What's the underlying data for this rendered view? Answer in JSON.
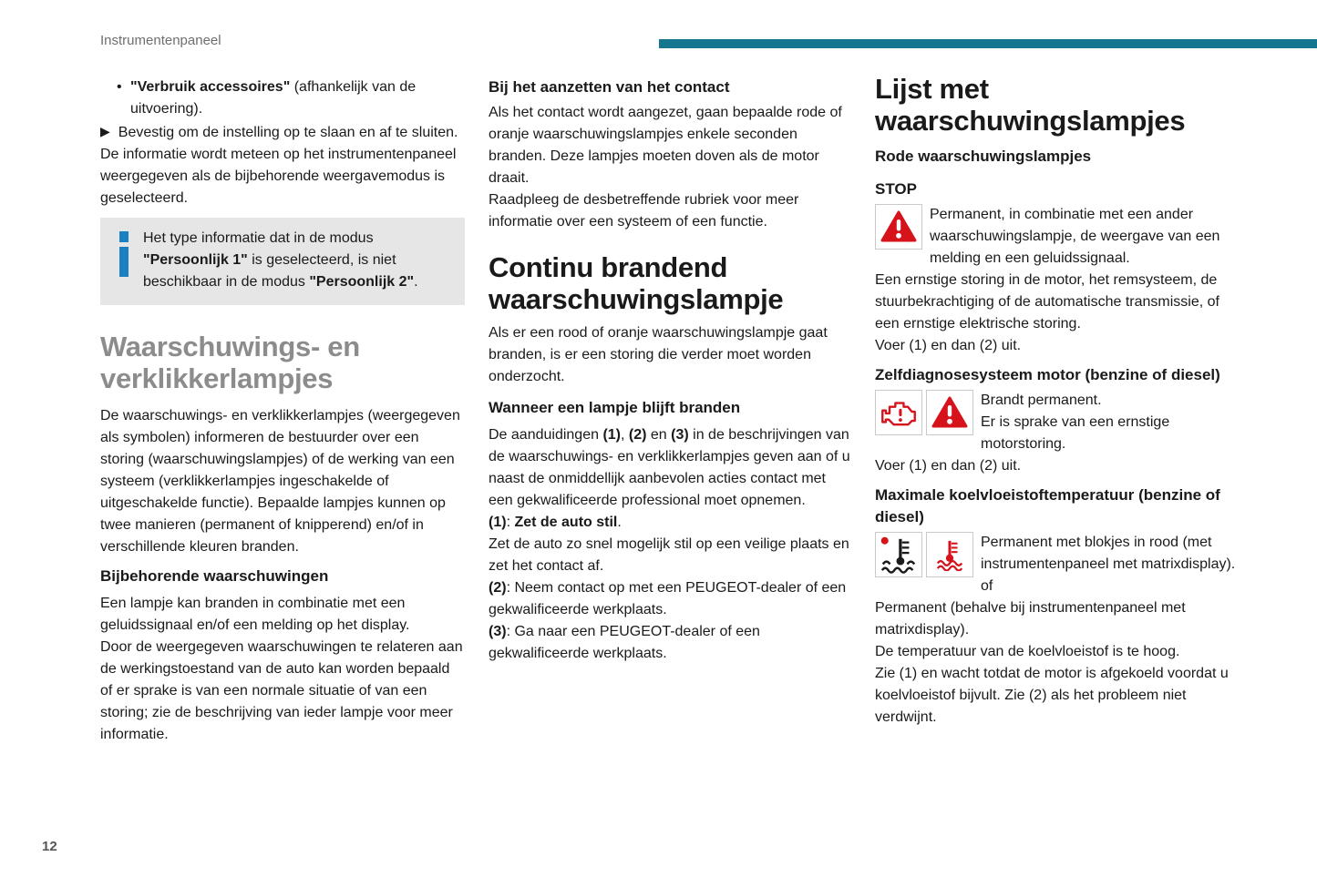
{
  "page": {
    "header": "Instrumentenpaneel",
    "page_number": "12",
    "accent_color": "#17768f",
    "warning_red": "#d6121b",
    "info_blue": "#1b7fc4",
    "infobox_bg": "#e6e6e6",
    "heading_gray": "#8c8c8c"
  },
  "col1": {
    "bullet_glyph": "•",
    "arrow_glyph": "▶",
    "bullet_item_rich": [
      {
        "t": "\"Verbruik accessoires\"",
        "b": true
      },
      {
        "t": " (afhankelijk van de uitvoering).",
        "b": false
      }
    ],
    "action_item": "Bevestig om de instelling op te slaan en af te sluiten.",
    "para_display": "De informatie wordt meteen op het instrumentenpaneel weergegeven als de bijbehorende weergavemodus is geselecteerd.",
    "infobox_rich": [
      {
        "t": "Het type informatie dat in de modus ",
        "b": false
      },
      {
        "t": "\"Persoonlijk 1\"",
        "b": true
      },
      {
        "t": " is geselecteerd, is niet beschikbaar in de modus ",
        "b": false
      },
      {
        "t": "\"Persoonlijk 2\"",
        "b": true
      },
      {
        "t": ".",
        "b": false
      }
    ],
    "heading": "Waarschuwings- en verklikkerlampjes",
    "intro": "De waarschuwings- en verklikkerlampjes (weergegeven als symbolen) informeren de bestuurder over een storing (waarschuwingslampjes) of de werking van een systeem (verklikkerlampjes ingeschakelde of uitgeschakelde functie). Bepaalde lampjes kunnen op twee manieren (permanent of knipperend) en/of in verschillende kleuren branden.",
    "sub1": "Bijbehorende waarschuwingen",
    "para_warnings": "Een lampje kan branden in combinatie met een geluidssignaal en/of een melding op het display.\nDoor de weergegeven waarschuwingen te relateren aan de werkingstoestand van de auto kan worden bepaald of er sprake is van een normale situatie of van een storing; zie de beschrijving van ieder lampje voor meer informatie."
  },
  "col2": {
    "sub1": "Bij het aanzetten van het contact",
    "para1": "Als het contact wordt aangezet, gaan bepaalde rode of oranje waarschuwingslampjes enkele seconden branden. Deze lampjes moeten doven als de motor draait.\nRaadpleeg de desbetreffende rubriek voor meer informatie over een systeem of een functie.",
    "heading": "Continu brandend waarschuwingslampje",
    "para2": "Als er een rood of oranje waarschuwingslampje gaat branden, is er een storing die verder moet worden onderzocht.",
    "sub2": "Wanneer een lampje blijft branden",
    "rich_intro": [
      {
        "t": "De aanduidingen ",
        "b": false
      },
      {
        "t": "(1)",
        "b": true
      },
      {
        "t": ", ",
        "b": false
      },
      {
        "t": "(2)",
        "b": true
      },
      {
        "t": " en ",
        "b": false
      },
      {
        "t": "(3)",
        "b": true
      },
      {
        "t": " in de beschrijvingen van de waarschuwings- en verklikkerlampjes geven aan of u naast de onmiddellijk aanbevolen acties contact met een gekwalificeerde professional moet opnemen.",
        "b": false
      }
    ],
    "rich_step1": [
      {
        "t": "(1)",
        "b": true
      },
      {
        "t": ": ",
        "b": false
      },
      {
        "t": "Zet de auto stil",
        "b": true
      },
      {
        "t": ".",
        "b": false
      }
    ],
    "para_step1": "Zet de auto zo snel mogelijk stil op een veilige plaats en zet het contact af.",
    "rich_step2": [
      {
        "t": "(2)",
        "b": true
      },
      {
        "t": ": Neem contact op met een PEUGEOT-dealer of een gekwalificeerde werkplaats.",
        "b": false
      }
    ],
    "rich_step3": [
      {
        "t": "(3)",
        "b": true
      },
      {
        "t": ": Ga naar een PEUGEOT-dealer of een gekwalificeerde werkplaats.",
        "b": false
      }
    ]
  },
  "col3": {
    "heading": "Lijst met waarschuwingslampjes",
    "sub1": "Rode waarschuwingslampjes",
    "sections": {
      "stop": {
        "title": "STOP",
        "icons": [
          "warning-triangle-icon"
        ],
        "text": "Permanent, in combinatie met een ander waarschuwingslampje, de weergave van een melding en een geluidssignaal.\nEen ernstige storing in de motor, het remsysteem, de stuurbekrachtiging of de automatische transmissie, of een ernstige elektrische storing.\nVoer (1) en dan (2) uit."
      },
      "engine": {
        "title": "Zelfdiagnosesysteem motor (benzine of diesel)",
        "icons": [
          "engine-warning-icon",
          "warning-triangle-icon"
        ],
        "text": "Brandt permanent.\nEr is sprake van een ernstige motorstoring.\nVoer (1) en dan (2) uit."
      },
      "coolant": {
        "title": "Maximale koelvloeistoftemperatuur (benzine of\ndiesel)",
        "icons": [
          "coolant-temperature-max-icon",
          "coolant-temperature-icon"
        ],
        "text": "Permanent met blokjes in rood (met instrumentenpaneel met matrixdisplay).\nof\nPermanent (behalve bij instrumentenpaneel met matrixdisplay).\nDe temperatuur van de koelvloeistof is te hoog.\nZie (1) en wacht totdat de motor is afgekoeld voordat u koelvloeistof bijvult. Zie (2) als het probleem niet verdwijnt."
      }
    }
  }
}
